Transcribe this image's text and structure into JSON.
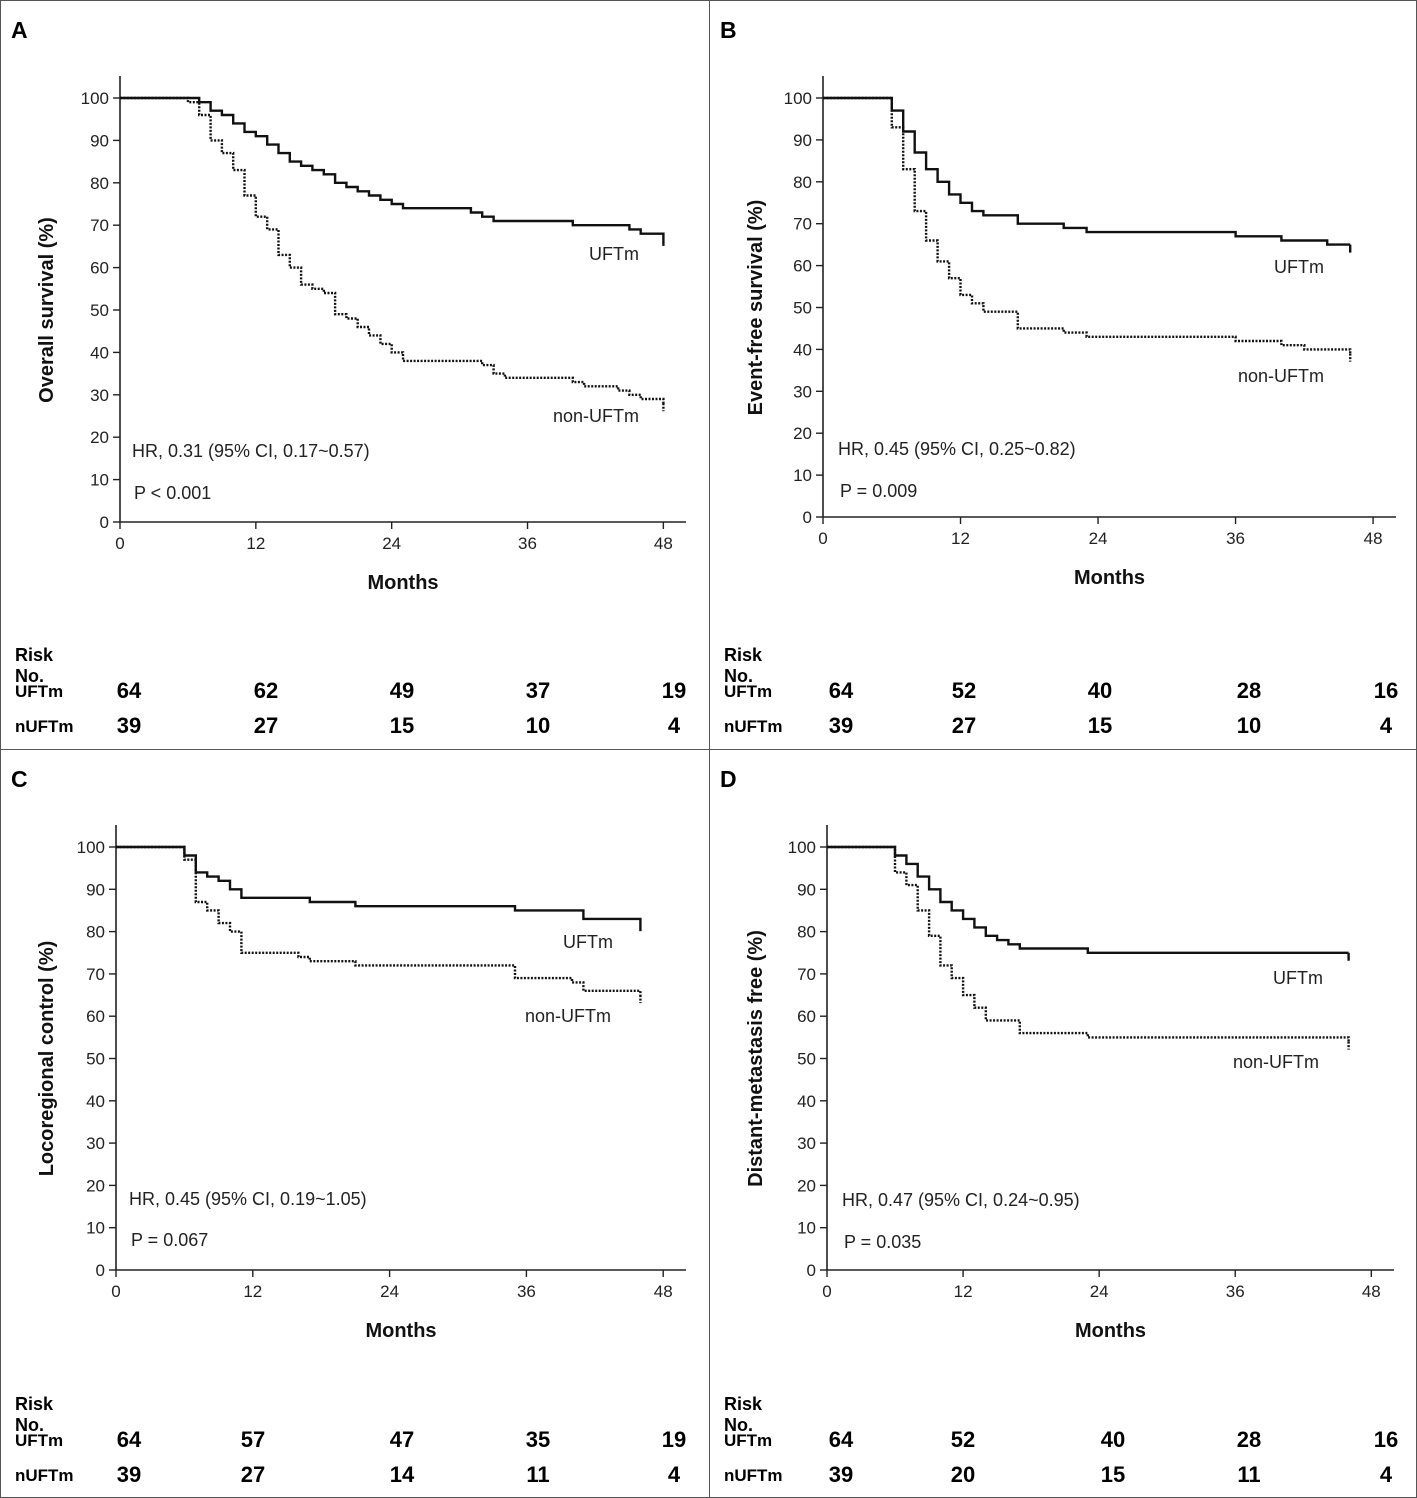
{
  "chart_data": [
    {
      "type": "line",
      "panel_label": "A",
      "xlabel": "Months",
      "ylabel": "Overall survival (%)",
      "xticks": [
        0,
        12,
        24,
        36,
        48
      ],
      "yticks": [
        0,
        10,
        20,
        30,
        40,
        50,
        60,
        70,
        80,
        90,
        100
      ],
      "xlim": [
        0,
        50
      ],
      "ylim": [
        0,
        100
      ],
      "hr_text": "HR, 0.31 (95% CI, 0.17~0.57)",
      "p_text": "P < 0.001",
      "series": [
        {
          "name": "UFTm",
          "style": "solid",
          "x": [
            0,
            6,
            7,
            8,
            9,
            10,
            11,
            12,
            13,
            14,
            15,
            16,
            17,
            18,
            19,
            20,
            21,
            22,
            23,
            24,
            25,
            26,
            27,
            28,
            29,
            30,
            31,
            32,
            33,
            34,
            35,
            36,
            37,
            38,
            39,
            40,
            41,
            42,
            43,
            44,
            45,
            46,
            47,
            48
          ],
          "y": [
            100,
            100,
            99,
            97,
            96,
            94,
            92,
            91,
            89,
            87,
            85,
            84,
            83,
            82,
            80,
            79,
            78,
            77,
            76,
            75,
            74,
            74,
            74,
            74,
            74,
            74,
            73,
            72,
            71,
            71,
            71,
            71,
            71,
            71,
            71,
            70,
            70,
            70,
            70,
            70,
            69,
            68,
            68,
            67
          ]
        },
        {
          "name": "non-UFTm",
          "style": "dotted",
          "x": [
            0,
            6,
            7,
            8,
            9,
            10,
            11,
            12,
            13,
            14,
            15,
            16,
            17,
            18,
            19,
            20,
            21,
            22,
            23,
            24,
            25,
            26,
            27,
            28,
            29,
            30,
            31,
            32,
            33,
            34,
            35,
            36,
            37,
            38,
            39,
            40,
            41,
            42,
            43,
            44,
            45,
            46,
            47,
            48
          ],
          "y": [
            100,
            99,
            96,
            90,
            87,
            83,
            77,
            72,
            69,
            63,
            60,
            56,
            55,
            54,
            49,
            48,
            46,
            44,
            42,
            40,
            38,
            38,
            38,
            38,
            38,
            38,
            38,
            37,
            35,
            34,
            34,
            34,
            34,
            34,
            34,
            33,
            32,
            32,
            32,
            31,
            30,
            29,
            29,
            28
          ]
        }
      ],
      "risk": {
        "title": "Risk No.",
        "rows": [
          {
            "label": "UFTm",
            "values": [
              64,
              62,
              49,
              37,
              19
            ]
          },
          {
            "label": "nUFTm",
            "values": [
              39,
              27,
              15,
              10,
              4
            ]
          }
        ]
      }
    },
    {
      "type": "line",
      "panel_label": "B",
      "xlabel": "Months",
      "ylabel": "Event-free survival (%)",
      "xticks": [
        0,
        12,
        24,
        36,
        48
      ],
      "yticks": [
        0,
        10,
        20,
        30,
        40,
        50,
        60,
        70,
        80,
        90,
        100
      ],
      "xlim": [
        0,
        50
      ],
      "ylim": [
        0,
        100
      ],
      "hr_text": "HR, 0.45 (95% CI, 0.25~0.82)",
      "p_text": "P = 0.009",
      "series": [
        {
          "name": "UFTm",
          "style": "solid",
          "x": [
            0,
            6,
            7,
            8,
            9,
            10,
            11,
            12,
            13,
            14,
            15,
            16,
            17,
            18,
            19,
            20,
            21,
            22,
            23,
            24,
            26,
            28,
            30,
            32,
            34,
            36,
            38,
            40,
            42,
            44,
            46
          ],
          "y": [
            100,
            97,
            92,
            87,
            83,
            80,
            77,
            75,
            73,
            72,
            72,
            72,
            70,
            70,
            70,
            70,
            69,
            69,
            68,
            68,
            68,
            68,
            68,
            68,
            68,
            67,
            67,
            66,
            66,
            65,
            65
          ]
        },
        {
          "name": "non-UFTm",
          "style": "dotted",
          "x": [
            0,
            6,
            7,
            8,
            9,
            10,
            11,
            12,
            13,
            14,
            15,
            16,
            17,
            18,
            19,
            20,
            21,
            22,
            23,
            24,
            26,
            28,
            30,
            32,
            34,
            36,
            38,
            40,
            42,
            44,
            46
          ],
          "y": [
            100,
            93,
            83,
            73,
            66,
            61,
            57,
            53,
            51,
            49,
            49,
            49,
            45,
            45,
            45,
            45,
            44,
            44,
            43,
            43,
            43,
            43,
            43,
            43,
            43,
            42,
            42,
            41,
            40,
            40,
            39
          ]
        }
      ],
      "risk": {
        "title": "Risk No.",
        "rows": [
          {
            "label": "UFTm",
            "values": [
              64,
              52,
              40,
              28,
              16
            ]
          },
          {
            "label": "nUFTm",
            "values": [
              39,
              27,
              15,
              10,
              4
            ]
          }
        ]
      }
    },
    {
      "type": "line",
      "panel_label": "C",
      "xlabel": "Months",
      "ylabel": "Locoregional control (%)",
      "xticks": [
        0,
        12,
        24,
        36,
        48
      ],
      "yticks": [
        0,
        10,
        20,
        30,
        40,
        50,
        60,
        70,
        80,
        90,
        100
      ],
      "xlim": [
        0,
        50
      ],
      "ylim": [
        0,
        100
      ],
      "hr_text": "HR, 0.45 (95% CI, 0.19~1.05)",
      "p_text": "P = 0.067",
      "series": [
        {
          "name": "UFTm",
          "style": "solid",
          "x": [
            0,
            6,
            7,
            8,
            9,
            10,
            11,
            12,
            14,
            16,
            17,
            18,
            20,
            21,
            22,
            24,
            26,
            28,
            30,
            32,
            34,
            35,
            36,
            38,
            40,
            41,
            42,
            44,
            46
          ],
          "y": [
            100,
            98,
            94,
            93,
            92,
            90,
            88,
            88,
            88,
            88,
            87,
            87,
            87,
            86,
            86,
            86,
            86,
            86,
            86,
            86,
            86,
            85,
            85,
            85,
            85,
            83,
            83,
            83,
            82
          ]
        },
        {
          "name": "non-UFTm",
          "style": "dotted",
          "x": [
            0,
            6,
            7,
            8,
            9,
            10,
            11,
            12,
            14,
            16,
            17,
            18,
            20,
            21,
            22,
            24,
            26,
            28,
            30,
            32,
            34,
            35,
            36,
            38,
            40,
            41,
            42,
            44,
            46
          ],
          "y": [
            100,
            97,
            87,
            85,
            82,
            80,
            75,
            75,
            75,
            74,
            73,
            73,
            73,
            72,
            72,
            72,
            72,
            72,
            72,
            72,
            72,
            69,
            69,
            69,
            68,
            66,
            66,
            66,
            65
          ]
        }
      ],
      "risk": {
        "title": "Risk No.",
        "rows": [
          {
            "label": "UFTm",
            "values": [
              64,
              57,
              47,
              35,
              19
            ]
          },
          {
            "label": "nUFTm",
            "values": [
              39,
              27,
              14,
              11,
              4
            ]
          }
        ]
      }
    },
    {
      "type": "line",
      "panel_label": "D",
      "xlabel": "Months",
      "ylabel": "Distant-metastasis free (%)",
      "xticks": [
        0,
        12,
        24,
        36,
        48
      ],
      "yticks": [
        0,
        10,
        20,
        30,
        40,
        50,
        60,
        70,
        80,
        90,
        100
      ],
      "xlim": [
        0,
        50
      ],
      "ylim": [
        0,
        100
      ],
      "hr_text": "HR, 0.47 (95% CI, 0.24~0.95)",
      "p_text": "P = 0.035",
      "series": [
        {
          "name": "UFTm",
          "style": "solid",
          "x": [
            0,
            6,
            7,
            8,
            9,
            10,
            11,
            12,
            13,
            14,
            15,
            16,
            17,
            18,
            20,
            22,
            23,
            24,
            28,
            32,
            36,
            40,
            44,
            46
          ],
          "y": [
            100,
            98,
            96,
            93,
            90,
            87,
            85,
            83,
            81,
            79,
            78,
            77,
            76,
            76,
            76,
            76,
            75,
            75,
            75,
            75,
            75,
            75,
            75,
            75
          ]
        },
        {
          "name": "non-UFTm",
          "style": "dotted",
          "x": [
            0,
            6,
            7,
            8,
            9,
            10,
            11,
            12,
            13,
            14,
            15,
            16,
            17,
            18,
            20,
            22,
            23,
            24,
            28,
            32,
            36,
            40,
            44,
            46
          ],
          "y": [
            100,
            94,
            91,
            85,
            79,
            72,
            69,
            65,
            62,
            59,
            59,
            59,
            56,
            56,
            56,
            56,
            55,
            55,
            55,
            55,
            55,
            55,
            55,
            54
          ]
        }
      ],
      "risk": {
        "title": "Risk No.",
        "rows": [
          {
            "label": "UFTm",
            "values": [
              64,
              52,
              40,
              28,
              16
            ]
          },
          {
            "label": "nUFTm",
            "values": [
              39,
              20,
              15,
              11,
              4
            ]
          }
        ]
      }
    }
  ]
}
